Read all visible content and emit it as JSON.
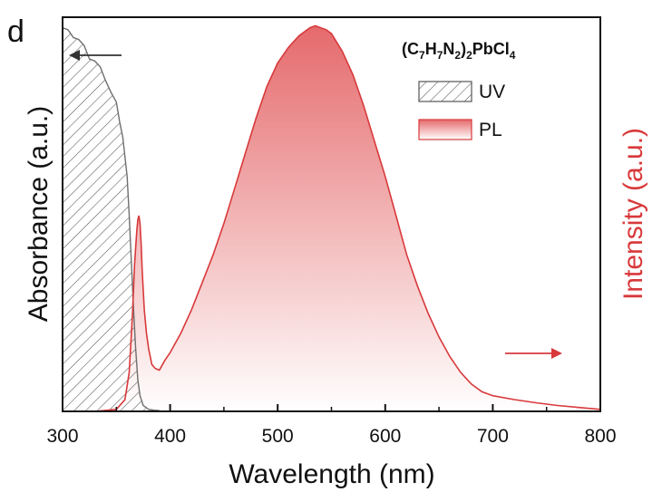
{
  "chart_data": {
    "type": "area",
    "panel_label": "d",
    "compound": {
      "base": "(C",
      "s1": "7",
      "h": "H",
      "s2": "7",
      "n": "N",
      "s3": "2",
      "close": ")",
      "s4": "2",
      "tail": "PbCl",
      "s5": "4"
    },
    "xlabel": "Wavelength (nm)",
    "ylabel_left": "Absorbance (a.u.)",
    "ylabel_right": "Intensity (a.u.)",
    "xlim": [
      300,
      800
    ],
    "ylim": [
      0,
      1.0
    ],
    "x_ticks": [
      "300",
      "400",
      "500",
      "600",
      "700",
      "800"
    ],
    "legend": {
      "uv": "UV",
      "pl": "PL",
      "placement": "top-right"
    },
    "colors": {
      "uv_line": "#6e6e6e",
      "pl_line": "#d8393b",
      "pl_fill_top": "#e56a6c",
      "axis": "#111111",
      "right_axis": "#d8393b"
    },
    "series": [
      {
        "name": "UV",
        "x": [
          300,
          305,
          310,
          315,
          320,
          325,
          330,
          335,
          340,
          345,
          350,
          353,
          356,
          358,
          360,
          362,
          364,
          366,
          368,
          370,
          372,
          375,
          380,
          385,
          390
        ],
        "y": [
          0.98,
          0.975,
          0.955,
          0.95,
          0.935,
          0.9,
          0.895,
          0.88,
          0.845,
          0.815,
          0.79,
          0.74,
          0.7,
          0.65,
          0.6,
          0.5,
          0.38,
          0.26,
          0.16,
          0.08,
          0.04,
          0.015,
          0.005,
          0.003,
          0.002
        ]
      },
      {
        "name": "PL",
        "x": [
          300,
          330,
          350,
          358,
          362,
          365,
          367,
          369,
          370,
          371,
          372,
          373,
          374,
          376,
          378,
          380,
          383,
          386,
          390,
          395,
          400,
          410,
          420,
          430,
          440,
          450,
          460,
          470,
          480,
          490,
          500,
          510,
          520,
          530,
          535,
          540,
          545,
          550,
          560,
          570,
          580,
          590,
          600,
          610,
          620,
          630,
          640,
          650,
          660,
          670,
          680,
          690,
          700,
          720,
          740,
          760,
          780,
          800
        ],
        "y": [
          0.0,
          0.0,
          0.005,
          0.03,
          0.1,
          0.25,
          0.38,
          0.46,
          0.49,
          0.5,
          0.48,
          0.43,
          0.36,
          0.26,
          0.2,
          0.16,
          0.12,
          0.11,
          0.105,
          0.13,
          0.15,
          0.2,
          0.26,
          0.33,
          0.4,
          0.48,
          0.57,
          0.66,
          0.75,
          0.83,
          0.89,
          0.93,
          0.96,
          0.98,
          0.985,
          0.98,
          0.975,
          0.965,
          0.92,
          0.86,
          0.78,
          0.69,
          0.6,
          0.5,
          0.4,
          0.32,
          0.25,
          0.19,
          0.14,
          0.1,
          0.07,
          0.05,
          0.04,
          0.03,
          0.022,
          0.015,
          0.01,
          0.005
        ]
      }
    ]
  }
}
